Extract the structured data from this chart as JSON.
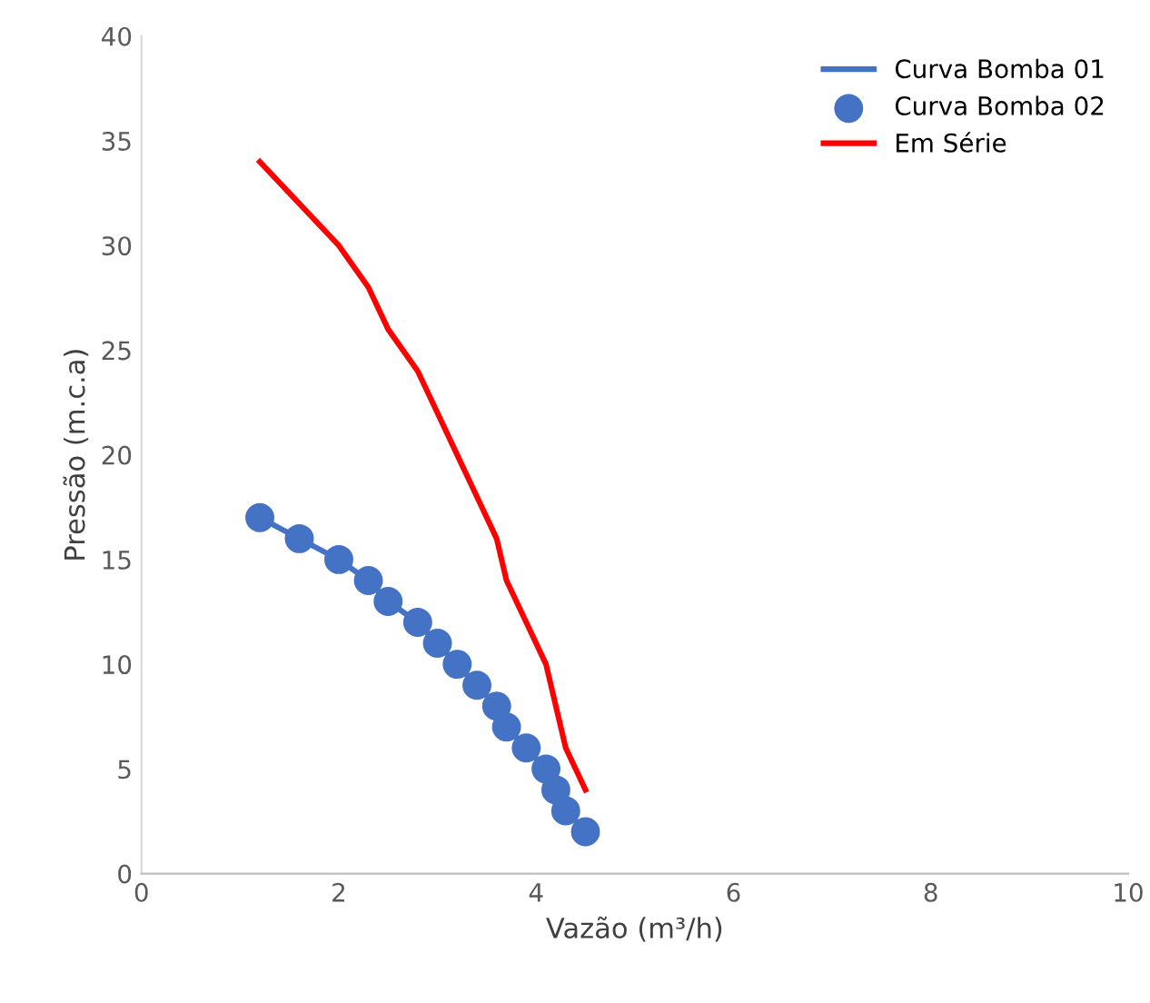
{
  "chart_data": {
    "type": "line",
    "xlabel": "Vazão (m³/h)",
    "ylabel": "Pressão (m.c.a)",
    "x": [
      1.2,
      1.6,
      2.0,
      2.3,
      2.5,
      2.8,
      3.0,
      3.2,
      3.4,
      3.6,
      3.7,
      3.9,
      4.1,
      4.2,
      4.3,
      4.5
    ],
    "series": [
      {
        "name": "Curva Bomba 01",
        "color": "#4472c4",
        "values": [
          17,
          16,
          15,
          14,
          13,
          12,
          11,
          10,
          9,
          8,
          7,
          6,
          5,
          4,
          3,
          2
        ]
      },
      {
        "name": "Curva Bomba 02",
        "type": "scatter",
        "marker": "circle",
        "color": "#4472c4",
        "values": [
          17,
          16,
          15,
          14,
          13,
          12,
          11,
          10,
          9,
          8,
          7,
          6,
          5,
          4,
          3,
          2
        ]
      },
      {
        "name": "Em Série",
        "type": "line",
        "color": "#ff0000",
        "values": [
          34,
          32,
          30,
          28,
          26,
          24,
          22,
          20,
          18,
          16,
          14,
          12,
          10,
          8,
          6,
          4
        ]
      }
    ],
    "xlim": [
      0,
      10
    ],
    "xticks": [
      0,
      2,
      4,
      6,
      8,
      10
    ],
    "ylim": [
      0,
      40
    ],
    "yticks": [
      0,
      5,
      10,
      15,
      20,
      25,
      30,
      35,
      40
    ],
    "grid": false,
    "legend": "top right"
  }
}
